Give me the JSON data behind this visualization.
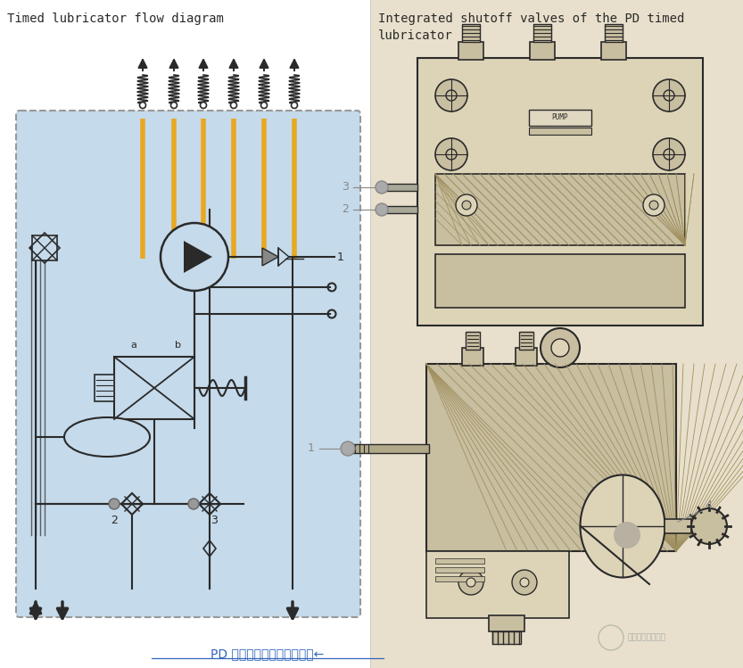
{
  "title_left": "Timed lubricator flow diagram",
  "title_right": "Integrated shutoff valves of the PD timed\nlubricator",
  "caption": "PD 定时注油器的集成截止阀←",
  "bg_right": "#e8e0cc",
  "bg_left": "#ffffff",
  "panel_blue": "#c5daea",
  "panel_border": "#999999",
  "dark": "#2a2a2a",
  "orange": "#e8a820",
  "gray_label": "#888888",
  "caption_color": "#3366bb",
  "tan_device": "#c8bea0",
  "tan_light": "#ddd4b8",
  "tan_bg": "#e8dfc8"
}
